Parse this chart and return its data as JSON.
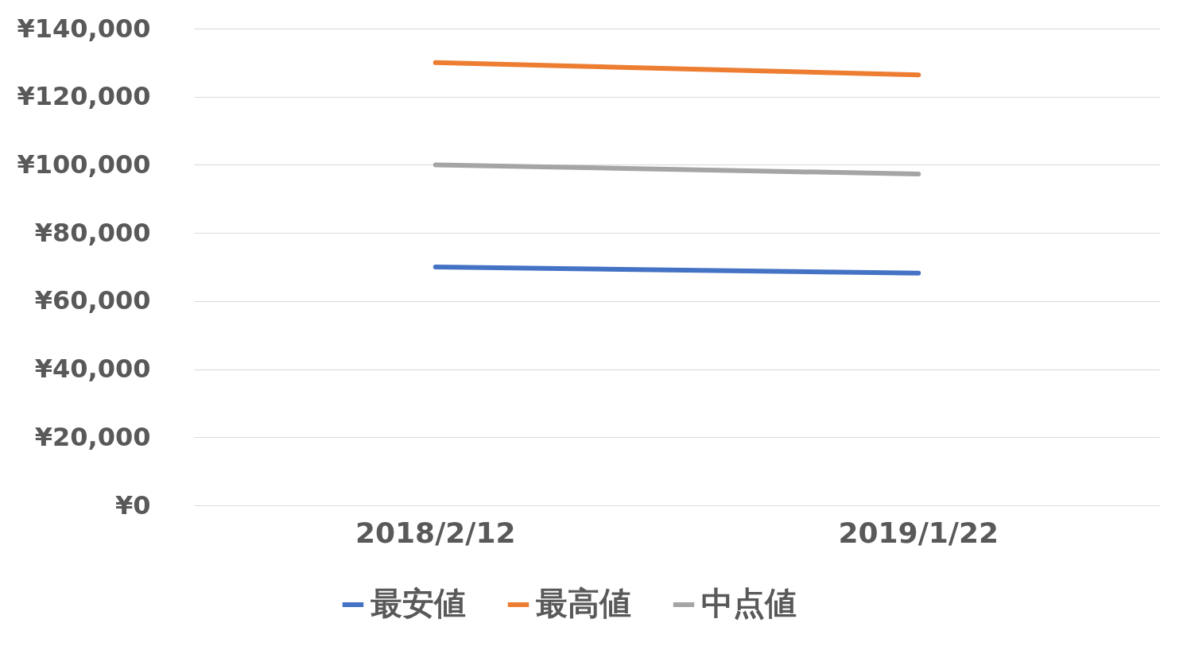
{
  "chart_data": {
    "type": "line",
    "categories": [
      "2018/2/12",
      "2019/1/22"
    ],
    "series": [
      {
        "name": "最安値",
        "color": "#4472c4",
        "values": [
          70000,
          68200
        ]
      },
      {
        "name": "最高値",
        "color": "#ed7d31",
        "values": [
          130000,
          126400
        ]
      },
      {
        "name": "中点値",
        "color": "#a5a5a5",
        "values": [
          100000,
          97300
        ]
      }
    ],
    "ylim": [
      0,
      140000
    ],
    "yticks": [
      {
        "value": 0,
        "label": "¥0"
      },
      {
        "value": 20000,
        "label": "¥20,000"
      },
      {
        "value": 40000,
        "label": "¥40,000"
      },
      {
        "value": 60000,
        "label": "¥60,000"
      },
      {
        "value": 80000,
        "label": "¥80,000"
      },
      {
        "value": 100000,
        "label": "¥100,000"
      },
      {
        "value": 120000,
        "label": "¥120,000"
      },
      {
        "value": 140000,
        "label": "¥140,000"
      }
    ],
    "grid": "y",
    "legend": "bottom",
    "marker": "none",
    "line_style": "solid"
  }
}
